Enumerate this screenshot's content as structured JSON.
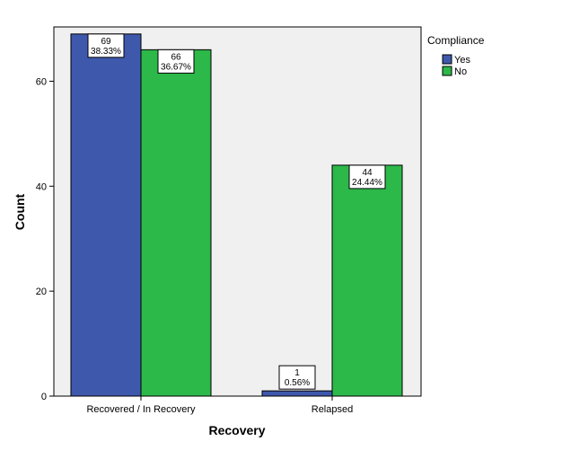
{
  "chart_data": {
    "type": "bar",
    "categories": [
      "Recovered / In Recovery",
      "Relapsed"
    ],
    "series": [
      {
        "name": "Yes",
        "color": "#3e58ac",
        "values": [
          69,
          1
        ],
        "labels": [
          {
            "count": "69",
            "percent": "38.33%"
          },
          {
            "count": "1",
            "percent": "0.56%"
          }
        ]
      },
      {
        "name": "No",
        "color": "#2db84a",
        "values": [
          66,
          44
        ],
        "labels": [
          {
            "count": "66",
            "percent": "36.67%"
          },
          {
            "count": "44",
            "percent": "24.44%"
          }
        ]
      }
    ],
    "xlabel": "Recovery",
    "ylabel": "Count",
    "ylim": [
      0,
      70
    ],
    "yticks": [
      0,
      20,
      40,
      60
    ],
    "legend_title": "Compliance",
    "legend_position": "top-right",
    "plot_background": "#f0f0f0",
    "grid": false
  }
}
